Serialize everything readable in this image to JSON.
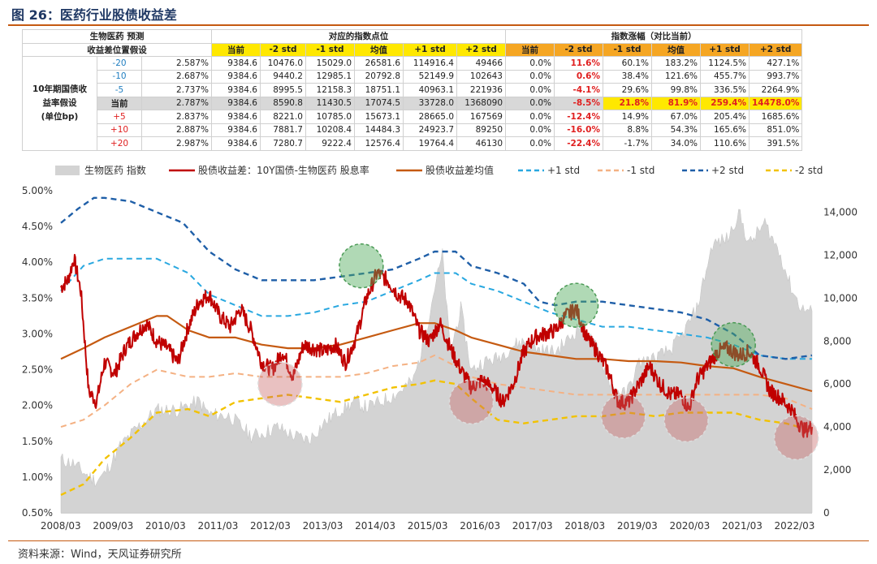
{
  "figure_title": "图 26：医药行业股债收益差",
  "source": "资料来源：Wind，天风证券研究所",
  "table": {
    "corner_line1": "生物医药 预测",
    "corner_line2": "收益差位置假设",
    "group_points": "对应的指数点位",
    "group_change": "指数涨幅（对比当前）",
    "columns": [
      "当前",
      "-2 std",
      "-1 std",
      "均值",
      "+1 std",
      "+2 std"
    ],
    "row_header": [
      "10年期国债收",
      "益率假设",
      "(单位bp)"
    ],
    "rows": [
      {
        "bp": "-20",
        "yield": "2.587%",
        "points": [
          "9384.6",
          "10476.0",
          "15029.0",
          "26581.6",
          "114916.4",
          "49466"
        ],
        "change": [
          "0.0%",
          "11.6%",
          "60.1%",
          "183.2%",
          "1124.5%",
          "427.1%"
        ]
      },
      {
        "bp": "-10",
        "yield": "2.687%",
        "points": [
          "9384.6",
          "9440.2",
          "12985.1",
          "20792.8",
          "52149.9",
          "102643"
        ],
        "change": [
          "0.0%",
          "0.6%",
          "38.4%",
          "121.6%",
          "455.7%",
          "993.7%"
        ]
      },
      {
        "bp": "-5",
        "yield": "2.737%",
        "points": [
          "9384.6",
          "8995.5",
          "12158.3",
          "18751.1",
          "40963.1",
          "221936"
        ],
        "change": [
          "0.0%",
          "-4.1%",
          "29.6%",
          "99.8%",
          "336.5%",
          "2264.9%"
        ]
      },
      {
        "bp": "当前",
        "yield": "2.787%",
        "points": [
          "9384.6",
          "8590.8",
          "11430.5",
          "17074.5",
          "33728.0",
          "1368090"
        ],
        "change": [
          "0.0%",
          "-8.5%",
          "21.8%",
          "81.9%",
          "259.4%",
          "14478.0%"
        ]
      },
      {
        "bp": "+5",
        "yield": "2.837%",
        "points": [
          "9384.6",
          "8221.0",
          "10785.0",
          "15673.1",
          "28665.0",
          "167569"
        ],
        "change": [
          "0.0%",
          "-12.4%",
          "14.9%",
          "67.0%",
          "205.4%",
          "1685.6%"
        ]
      },
      {
        "bp": "+10",
        "yield": "2.887%",
        "points": [
          "9384.6",
          "7881.7",
          "10208.4",
          "14484.3",
          "24923.7",
          "89250"
        ],
        "change": [
          "0.0%",
          "-16.0%",
          "8.8%",
          "54.3%",
          "165.6%",
          "851.0%"
        ]
      },
      {
        "bp": "+20",
        "yield": "2.987%",
        "points": [
          "9384.6",
          "7280.7",
          "9222.4",
          "12576.4",
          "19764.4",
          "46130"
        ],
        "change": [
          "0.0%",
          "-22.4%",
          "-1.7%",
          "34.0%",
          "110.6%",
          "391.5%"
        ]
      }
    ]
  },
  "chart_data": {
    "type": "line",
    "x_ticks": [
      "2008/03",
      "2009/03",
      "2010/03",
      "2011/03",
      "2012/03",
      "2013/03",
      "2014/03",
      "2015/03",
      "2016/03",
      "2017/03",
      "2018/03",
      "2019/03",
      "2020/03",
      "2021/03",
      "2022/03"
    ],
    "y_left_ticks": [
      "0.50%",
      "1.00%",
      "1.50%",
      "2.00%",
      "2.50%",
      "3.00%",
      "3.50%",
      "4.00%",
      "4.50%",
      "5.00%"
    ],
    "y_left_range": [
      0.5,
      5.0
    ],
    "y_right_ticks": [
      "0",
      "2,000",
      "4,000",
      "6,000",
      "8,000",
      "10,000",
      "12,000",
      "14,000"
    ],
    "y_right_range": [
      0,
      15000
    ],
    "x_range": [
      2008.17,
      2022.5
    ],
    "legend": [
      "生物医药 指数",
      "股债收益差：10Y国债-生物医药 股息率",
      "股债收益差均值",
      "+1 std",
      "-1 std",
      "+2 std",
      "-2 std"
    ],
    "colors": {
      "index": "#d3d3d3",
      "spread": "#c00000",
      "mean": "#c55a11",
      "plus1": "#29a8e0",
      "minus1": "#f4b183",
      "plus2": "#1f5fa8",
      "minus2": "#f2c200"
    },
    "series": [
      {
        "name": "生物医药 指数",
        "axis": "right",
        "x": [
          2008.17,
          2008.4,
          2008.7,
          2008.85,
          2009.0,
          2009.3,
          2009.6,
          2010.0,
          2010.4,
          2010.8,
          2011.0,
          2011.4,
          2011.8,
          2012.0,
          2012.3,
          2012.6,
          2012.9,
          2013.2,
          2013.5,
          2013.8,
          2014.0,
          2014.3,
          2014.6,
          2014.9,
          2015.1,
          2015.3,
          2015.45,
          2015.6,
          2015.8,
          2016.0,
          2016.2,
          2016.5,
          2016.8,
          2017.0,
          2017.3,
          2017.6,
          2017.9,
          2018.1,
          2018.4,
          2018.7,
          2018.95,
          2019.2,
          2019.5,
          2019.8,
          2020.0,
          2020.3,
          2020.6,
          2020.9,
          2021.1,
          2021.3,
          2021.6,
          2021.9,
          2022.1,
          2022.3,
          2022.5
        ],
        "values": [
          2500,
          2300,
          1700,
          1500,
          1800,
          3100,
          3900,
          4800,
          4800,
          5200,
          4600,
          4500,
          3600,
          3700,
          4000,
          3600,
          3400,
          4200,
          4800,
          5200,
          4900,
          5200,
          5600,
          6200,
          8000,
          10500,
          12000,
          7500,
          9500,
          6600,
          7000,
          7200,
          7800,
          8000,
          7600,
          7500,
          8200,
          8800,
          7600,
          5800,
          5500,
          7000,
          7200,
          7600,
          8200,
          9500,
          12500,
          12800,
          14000,
          12500,
          13500,
          12000,
          10500,
          9500,
          9400
        ]
      },
      {
        "name": "股债收益差：10Y国债-生物医药 股息率",
        "axis": "left",
        "x": [
          2008.17,
          2008.3,
          2008.42,
          2008.55,
          2008.7,
          2008.85,
          2009.0,
          2009.2,
          2009.4,
          2009.6,
          2009.8,
          2010.0,
          2010.2,
          2010.4,
          2010.6,
          2010.8,
          2011.0,
          2011.2,
          2011.4,
          2011.6,
          2011.8,
          2012.0,
          2012.2,
          2012.4,
          2012.6,
          2012.8,
          2013.0,
          2013.2,
          2013.4,
          2013.6,
          2013.8,
          2014.0,
          2014.2,
          2014.4,
          2014.6,
          2014.8,
          2015.0,
          2015.2,
          2015.4,
          2015.6,
          2015.8,
          2016.0,
          2016.2,
          2016.4,
          2016.6,
          2016.8,
          2017.0,
          2017.2,
          2017.4,
          2017.6,
          2017.8,
          2018.0,
          2018.2,
          2018.4,
          2018.6,
          2018.8,
          2019.0,
          2019.2,
          2019.4,
          2019.6,
          2019.8,
          2020.0,
          2020.15,
          2020.3,
          2020.5,
          2020.7,
          2020.9,
          2021.1,
          2021.3,
          2021.5,
          2021.7,
          2021.9,
          2022.1,
          2022.25,
          2022.35,
          2022.5
        ],
        "values": [
          3.65,
          3.75,
          4.05,
          3.6,
          2.2,
          2.05,
          2.6,
          2.45,
          2.8,
          3.0,
          3.15,
          2.9,
          2.8,
          2.6,
          3.1,
          3.45,
          3.55,
          3.25,
          3.1,
          3.35,
          3.05,
          2.6,
          2.5,
          2.75,
          2.4,
          2.85,
          2.8,
          2.75,
          2.85,
          2.6,
          2.95,
          3.5,
          3.85,
          3.75,
          3.55,
          3.45,
          3.05,
          2.9,
          3.15,
          2.8,
          2.5,
          2.25,
          2.35,
          2.25,
          2.05,
          2.3,
          2.75,
          2.95,
          3.0,
          3.05,
          3.25,
          3.35,
          2.95,
          2.75,
          2.5,
          2.05,
          2.05,
          2.3,
          2.55,
          2.3,
          2.15,
          2.15,
          1.95,
          2.35,
          2.55,
          2.75,
          2.8,
          2.7,
          2.75,
          2.55,
          2.2,
          2.1,
          1.95,
          1.75,
          1.65,
          1.7
        ]
      },
      {
        "name": "股债收益差均值",
        "axis": "left",
        "x": [
          2008.17,
          2008.6,
          2009.0,
          2009.5,
          2010.0,
          2010.2,
          2010.6,
          2011.0,
          2011.5,
          2012.0,
          2012.5,
          2013.0,
          2013.5,
          2014.0,
          2014.5,
          2015.0,
          2015.3,
          2015.7,
          2016.0,
          2016.5,
          2017.0,
          2017.5,
          2018.0,
          2018.5,
          2019.0,
          2019.5,
          2020.0,
          2020.5,
          2021.0,
          2021.5,
          2022.0,
          2022.5
        ],
        "values": [
          2.65,
          2.8,
          2.95,
          3.1,
          3.25,
          3.25,
          3.05,
          2.95,
          2.95,
          2.85,
          2.8,
          2.8,
          2.85,
          2.95,
          3.05,
          3.15,
          3.15,
          3.05,
          2.95,
          2.85,
          2.75,
          2.7,
          2.65,
          2.65,
          2.62,
          2.62,
          2.6,
          2.55,
          2.52,
          2.4,
          2.3,
          2.2
        ]
      },
      {
        "name": "+1 std",
        "axis": "left",
        "x": [
          2008.17,
          2008.6,
          2009.0,
          2009.5,
          2010.0,
          2010.6,
          2011.0,
          2011.5,
          2012.0,
          2012.5,
          2013.0,
          2013.5,
          2014.0,
          2014.5,
          2015.0,
          2015.3,
          2015.7,
          2016.0,
          2016.5,
          2017.0,
          2017.5,
          2018.0,
          2018.5,
          2019.0,
          2019.5,
          2020.0,
          2020.5,
          2021.0,
          2021.5,
          2022.0,
          2022.5
        ],
        "values": [
          3.6,
          3.95,
          4.05,
          4.05,
          4.05,
          3.85,
          3.55,
          3.4,
          3.25,
          3.25,
          3.3,
          3.4,
          3.45,
          3.6,
          3.75,
          3.85,
          3.85,
          3.7,
          3.6,
          3.45,
          3.3,
          3.2,
          3.1,
          3.1,
          3.05,
          3.0,
          2.95,
          2.85,
          2.7,
          2.65,
          2.65
        ]
      },
      {
        "name": "-1 std",
        "axis": "left",
        "x": [
          2008.17,
          2008.6,
          2009.0,
          2009.5,
          2010.0,
          2010.6,
          2011.0,
          2011.5,
          2012.0,
          2012.5,
          2013.0,
          2013.5,
          2014.0,
          2014.5,
          2015.0,
          2015.3,
          2015.7,
          2016.0,
          2016.5,
          2017.0,
          2017.5,
          2018.0,
          2018.5,
          2019.0,
          2019.5,
          2020.0,
          2020.5,
          2021.0,
          2021.5,
          2022.0,
          2022.5
        ],
        "values": [
          1.7,
          1.8,
          2.0,
          2.3,
          2.5,
          2.4,
          2.4,
          2.45,
          2.4,
          2.4,
          2.4,
          2.4,
          2.45,
          2.55,
          2.6,
          2.7,
          2.55,
          2.4,
          2.3,
          2.25,
          2.2,
          2.15,
          2.15,
          2.15,
          2.15,
          2.15,
          2.15,
          2.15,
          2.15,
          2.1,
          1.95
        ]
      },
      {
        "name": "+2 std",
        "axis": "left",
        "x": [
          2008.17,
          2008.5,
          2008.8,
          2009.0,
          2009.5,
          2010.0,
          2010.5,
          2011.0,
          2011.5,
          2012.0,
          2012.5,
          2013.0,
          2013.5,
          2014.0,
          2014.5,
          2015.0,
          2015.3,
          2015.7,
          2016.0,
          2016.5,
          2017.0,
          2017.3,
          2017.6,
          2018.0,
          2018.5,
          2019.0,
          2019.5,
          2020.0,
          2020.5,
          2021.0,
          2021.5,
          2022.0,
          2022.5
        ],
        "values": [
          4.55,
          4.75,
          4.9,
          4.9,
          4.85,
          4.7,
          4.55,
          4.15,
          3.9,
          3.75,
          3.75,
          3.75,
          3.8,
          3.85,
          3.9,
          4.05,
          4.15,
          4.15,
          3.95,
          3.85,
          3.7,
          3.45,
          3.4,
          3.45,
          3.45,
          3.4,
          3.35,
          3.3,
          3.2,
          3.0,
          2.7,
          2.65,
          2.7
        ]
      },
      {
        "name": "-2 std",
        "axis": "left",
        "x": [
          2008.17,
          2008.6,
          2009.0,
          2009.5,
          2010.0,
          2010.6,
          2011.0,
          2011.5,
          2012.0,
          2012.5,
          2013.0,
          2013.5,
          2014.0,
          2014.5,
          2015.0,
          2015.3,
          2015.7,
          2016.0,
          2016.5,
          2017.0,
          2017.5,
          2018.0,
          2018.5,
          2019.0,
          2019.5,
          2020.0,
          2020.5,
          2021.0,
          2021.5,
          2022.0,
          2022.5
        ],
        "values": [
          0.75,
          0.9,
          1.25,
          1.55,
          1.9,
          1.95,
          1.85,
          2.05,
          2.1,
          2.15,
          2.1,
          2.05,
          2.15,
          2.25,
          2.3,
          2.35,
          2.3,
          2.1,
          1.8,
          1.75,
          1.8,
          1.85,
          1.85,
          1.9,
          1.85,
          1.9,
          1.9,
          1.9,
          1.8,
          1.75,
          1.65
        ]
      }
    ],
    "highlights": [
      {
        "kind": "high",
        "x": 2013.9,
        "y": 3.95
      },
      {
        "kind": "high",
        "x": 2018.0,
        "y": 3.4
      },
      {
        "kind": "high",
        "x": 2021.0,
        "y": 2.85
      },
      {
        "kind": "low",
        "x": 2012.35,
        "y": 2.3
      },
      {
        "kind": "low",
        "x": 2016.0,
        "y": 2.05
      },
      {
        "kind": "low",
        "x": 2018.9,
        "y": 1.85
      },
      {
        "kind": "low",
        "x": 2020.1,
        "y": 1.8
      },
      {
        "kind": "low",
        "x": 2022.2,
        "y": 1.55
      }
    ]
  }
}
